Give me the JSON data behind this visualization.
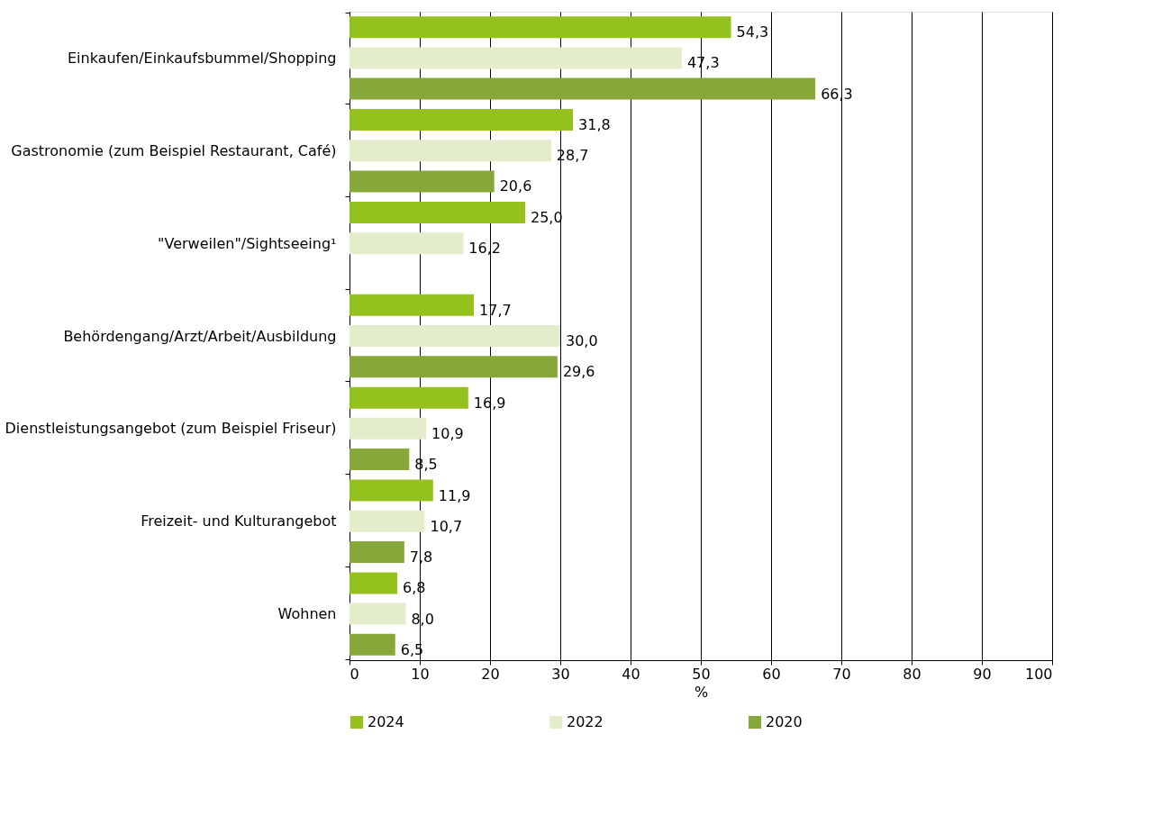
{
  "chart_data": {
    "type": "bar",
    "orientation": "horizontal",
    "xlabel": "%",
    "categories": [
      "Einkaufen/Einkaufsbummel/Shopping",
      "Gastronomie (zum Beispiel Restaurant, Café)",
      "\"Verweilen\"/Sightseeing¹",
      "Behördengang/Arzt/Arbeit/Ausbildung",
      "Dienstleistungsangebot (zum Beispiel Friseur)",
      "Freizeit- und Kulturangebot",
      "Wohnen"
    ],
    "series": [
      {
        "name": "2024",
        "color": "#95c11f",
        "values": [
          54.3,
          31.8,
          25.0,
          17.7,
          16.9,
          11.9,
          6.8
        ],
        "value_labels": [
          "54,3",
          "31,8",
          "25,0",
          "17,7",
          "16,9",
          "11,9",
          "6,8"
        ]
      },
      {
        "name": "2022",
        "color": "#e4edcb",
        "values": [
          47.3,
          28.7,
          16.2,
          30.0,
          10.9,
          10.7,
          8.0
        ],
        "value_labels": [
          "47,3",
          "28,7",
          "16,2",
          "30,0",
          "10,9",
          "10,7",
          "8,0"
        ]
      },
      {
        "name": "2020",
        "color": "#86a73a",
        "values": [
          66.3,
          20.6,
          null,
          29.6,
          8.5,
          7.8,
          6.5
        ],
        "value_labels": [
          "66,3",
          "20,6",
          null,
          "29,6",
          "8,5",
          "7,8",
          "6,5"
        ]
      }
    ],
    "xlim": [
      0,
      100
    ],
    "xticks": [
      0,
      10,
      20,
      30,
      40,
      50,
      60,
      70,
      80,
      90,
      100
    ],
    "grid": "x",
    "legend": "bottom"
  }
}
